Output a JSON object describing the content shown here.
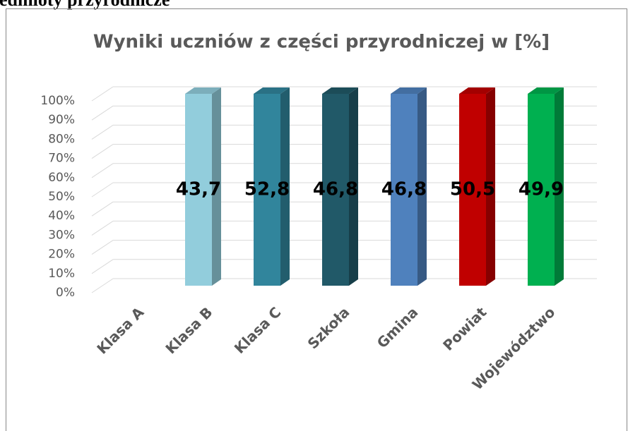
{
  "page_heading": "Przedmioty przyrodnicze",
  "chart_data": {
    "type": "bar",
    "percent_stacked": true,
    "title": "Wyniki uczniów z części przyrodniczej w [%]",
    "categories": [
      "Klasa A",
      "Klasa B",
      "Klasa C",
      "Szkoła",
      "Gmina",
      "Powiat",
      "Województwo"
    ],
    "series": [
      {
        "values": [
          null,
          43.7,
          52.8,
          46.8,
          46.8,
          50.5,
          49.9
        ],
        "value_labels": [
          null,
          "43,7",
          "52,8",
          "46,8",
          "46,8",
          "50,5",
          "49,9"
        ],
        "colors": [
          "#92cddc",
          "#92cddc",
          "#31859c",
          "#215968",
          "#4f81bd",
          "#c00000",
          "#00b050"
        ]
      }
    ],
    "ylim": [
      0,
      100
    ],
    "yticks": [
      {
        "value": 0,
        "label": "0%"
      },
      {
        "value": 10,
        "label": "10%"
      },
      {
        "value": 20,
        "label": "20%"
      },
      {
        "value": 30,
        "label": "30%"
      },
      {
        "value": 40,
        "label": "40%"
      },
      {
        "value": 50,
        "label": "50%"
      },
      {
        "value": 60,
        "label": "60%"
      },
      {
        "value": 70,
        "label": "70%"
      },
      {
        "value": 80,
        "label": "80%"
      },
      {
        "value": 90,
        "label": "90%"
      },
      {
        "value": 100,
        "label": "100%"
      }
    ],
    "grid": true
  }
}
